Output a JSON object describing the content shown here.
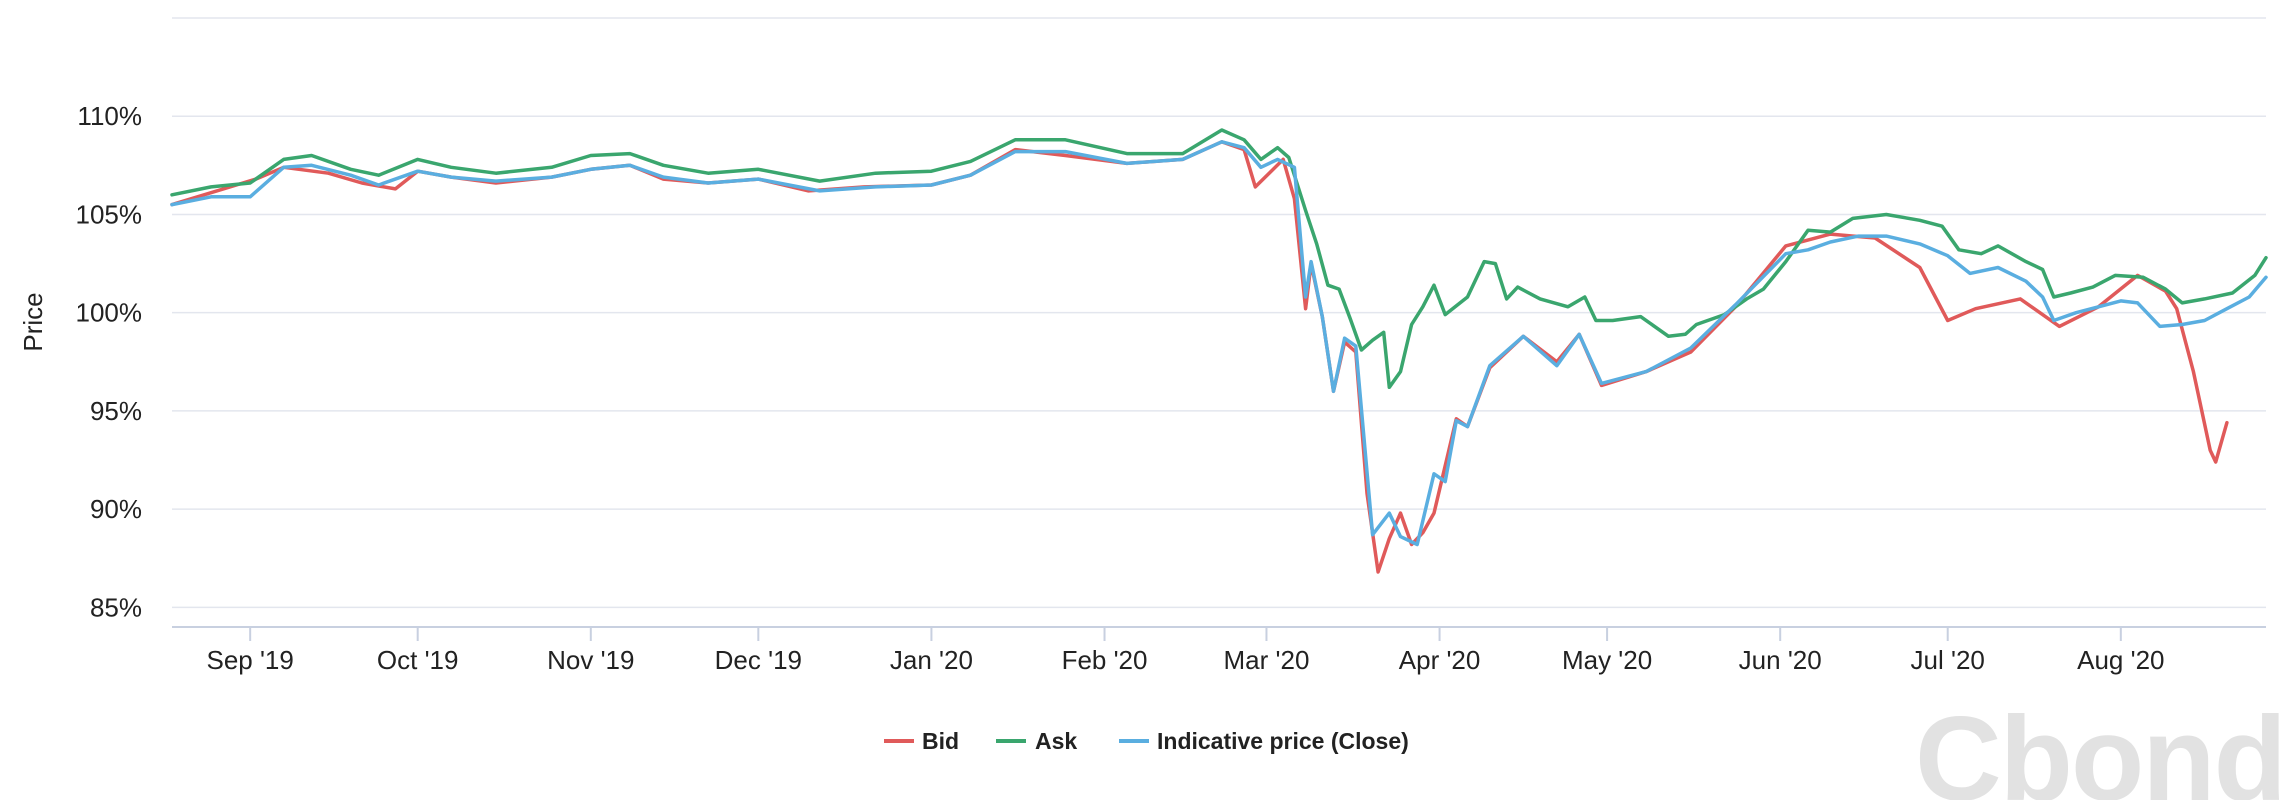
{
  "chart_data": {
    "type": "line",
    "ylabel": "Price",
    "y_unit": "%",
    "ylim": [
      84,
      115
    ],
    "y_ticks": [
      85,
      90,
      95,
      100,
      105,
      110
    ],
    "y_tick_labels": [
      "85%",
      "90%",
      "95%",
      "100%",
      "105%",
      "110%"
    ],
    "x_ticks": [
      {
        "label": "Sep '19",
        "date": "2019-09-01"
      },
      {
        "label": "Oct '19",
        "date": "2019-10-01"
      },
      {
        "label": "Nov '19",
        "date": "2019-11-01"
      },
      {
        "label": "Dec '19",
        "date": "2019-12-01"
      },
      {
        "label": "Jan '20",
        "date": "2020-01-01"
      },
      {
        "label": "Feb '20",
        "date": "2020-02-01"
      },
      {
        "label": "Mar '20",
        "date": "2020-03-01"
      },
      {
        "label": "Apr '20",
        "date": "2020-04-01"
      },
      {
        "label": "May '20",
        "date": "2020-05-01"
      },
      {
        "label": "Jun '20",
        "date": "2020-06-01"
      },
      {
        "label": "Jul '20",
        "date": "2020-07-01"
      },
      {
        "label": "Aug '20",
        "date": "2020-08-01"
      }
    ],
    "xlim": [
      "2019-08-18",
      "2020-08-27"
    ],
    "grid": true,
    "legend_position": "bottom-center",
    "series": [
      {
        "name": "Bid",
        "color": "#e05a5a",
        "points": [
          [
            "2019-08-18",
            105.5
          ],
          [
            "2019-09-02",
            106.8
          ],
          [
            "2019-09-07",
            107.4
          ],
          [
            "2019-09-15",
            107.1
          ],
          [
            "2019-09-21",
            106.6
          ],
          [
            "2019-09-27",
            106.3
          ],
          [
            "2019-10-01",
            107.2
          ],
          [
            "2019-10-07",
            106.9
          ],
          [
            "2019-10-15",
            106.6
          ],
          [
            "2019-10-25",
            106.9
          ],
          [
            "2019-11-01",
            107.3
          ],
          [
            "2019-11-08",
            107.5
          ],
          [
            "2019-11-14",
            106.8
          ],
          [
            "2019-11-22",
            106.6
          ],
          [
            "2019-12-01",
            106.8
          ],
          [
            "2019-12-10",
            106.2
          ],
          [
            "2019-12-20",
            106.4
          ],
          [
            "2020-01-01",
            106.5
          ],
          [
            "2020-01-08",
            107.0
          ],
          [
            "2020-01-16",
            108.3
          ],
          [
            "2020-01-25",
            108.0
          ],
          [
            "2020-02-05",
            107.6
          ],
          [
            "2020-02-15",
            107.8
          ],
          [
            "2020-02-22",
            108.7
          ],
          [
            "2020-02-26",
            108.3
          ],
          [
            "2020-02-28",
            106.4
          ],
          [
            "2020-03-04",
            107.8
          ],
          [
            "2020-03-06",
            105.8
          ],
          [
            "2020-03-08",
            100.2
          ],
          [
            "2020-03-09",
            102.5
          ],
          [
            "2020-03-11",
            99.8
          ],
          [
            "2020-03-13",
            96.0
          ],
          [
            "2020-03-15",
            98.5
          ],
          [
            "2020-03-17",
            98.0
          ],
          [
            "2020-03-19",
            90.8
          ],
          [
            "2020-03-21",
            86.8
          ],
          [
            "2020-03-23",
            88.5
          ],
          [
            "2020-03-25",
            89.8
          ],
          [
            "2020-03-27",
            88.2
          ],
          [
            "2020-03-29",
            88.8
          ],
          [
            "2020-03-31",
            89.8
          ],
          [
            "2020-04-04",
            94.6
          ],
          [
            "2020-04-06",
            94.2
          ],
          [
            "2020-04-10",
            97.2
          ],
          [
            "2020-04-16",
            98.8
          ],
          [
            "2020-04-22",
            97.5
          ],
          [
            "2020-04-26",
            98.9
          ],
          [
            "2020-04-30",
            96.3
          ],
          [
            "2020-05-08",
            97.0
          ],
          [
            "2020-05-16",
            98.0
          ],
          [
            "2020-05-24",
            100.3
          ],
          [
            "2020-06-02",
            103.4
          ],
          [
            "2020-06-10",
            104.0
          ],
          [
            "2020-06-18",
            103.8
          ],
          [
            "2020-06-26",
            102.3
          ],
          [
            "2020-07-01",
            99.6
          ],
          [
            "2020-07-06",
            100.2
          ],
          [
            "2020-07-14",
            100.7
          ],
          [
            "2020-07-21",
            99.3
          ],
          [
            "2020-07-28",
            100.3
          ],
          [
            "2020-08-04",
            101.9
          ],
          [
            "2020-08-09",
            101.1
          ],
          [
            "2020-08-11",
            100.2
          ],
          [
            "2020-08-14",
            97.0
          ],
          [
            "2020-08-17",
            93.0
          ],
          [
            "2020-08-18",
            92.4
          ],
          [
            "2020-08-20",
            94.4
          ]
        ]
      },
      {
        "name": "Ask",
        "color": "#3aa66e",
        "points": [
          [
            "2019-08-18",
            106.0
          ],
          [
            "2019-08-25",
            106.4
          ],
          [
            "2019-09-01",
            106.6
          ],
          [
            "2019-09-07",
            107.8
          ],
          [
            "2019-09-12",
            108.0
          ],
          [
            "2019-09-19",
            107.3
          ],
          [
            "2019-09-24",
            107.0
          ],
          [
            "2019-10-01",
            107.8
          ],
          [
            "2019-10-07",
            107.4
          ],
          [
            "2019-10-15",
            107.1
          ],
          [
            "2019-10-25",
            107.4
          ],
          [
            "2019-11-01",
            108.0
          ],
          [
            "2019-11-08",
            108.1
          ],
          [
            "2019-11-14",
            107.5
          ],
          [
            "2019-11-22",
            107.1
          ],
          [
            "2019-12-01",
            107.3
          ],
          [
            "2019-12-12",
            106.7
          ],
          [
            "2019-12-22",
            107.1
          ],
          [
            "2020-01-01",
            107.2
          ],
          [
            "2020-01-08",
            107.7
          ],
          [
            "2020-01-16",
            108.8
          ],
          [
            "2020-01-25",
            108.8
          ],
          [
            "2020-02-05",
            108.1
          ],
          [
            "2020-02-15",
            108.1
          ],
          [
            "2020-02-22",
            109.3
          ],
          [
            "2020-02-26",
            108.8
          ],
          [
            "2020-02-29",
            107.8
          ],
          [
            "2020-03-03",
            108.4
          ],
          [
            "2020-03-05",
            107.9
          ],
          [
            "2020-03-08",
            105.2
          ],
          [
            "2020-03-10",
            103.5
          ],
          [
            "2020-03-12",
            101.4
          ],
          [
            "2020-03-14",
            101.2
          ],
          [
            "2020-03-16",
            99.7
          ],
          [
            "2020-03-18",
            98.1
          ],
          [
            "2020-03-20",
            98.6
          ],
          [
            "2020-03-22",
            99.0
          ],
          [
            "2020-03-23",
            96.2
          ],
          [
            "2020-03-25",
            97.0
          ],
          [
            "2020-03-27",
            99.4
          ],
          [
            "2020-03-29",
            100.3
          ],
          [
            "2020-03-31",
            101.4
          ],
          [
            "2020-04-02",
            99.9
          ],
          [
            "2020-04-06",
            100.8
          ],
          [
            "2020-04-09",
            102.6
          ],
          [
            "2020-04-11",
            102.5
          ],
          [
            "2020-04-13",
            100.7
          ],
          [
            "2020-04-15",
            101.3
          ],
          [
            "2020-04-19",
            100.7
          ],
          [
            "2020-04-24",
            100.3
          ],
          [
            "2020-04-27",
            100.8
          ],
          [
            "2020-04-29",
            99.6
          ],
          [
            "2020-05-02",
            99.6
          ],
          [
            "2020-05-07",
            99.8
          ],
          [
            "2020-05-12",
            98.8
          ],
          [
            "2020-05-15",
            98.9
          ],
          [
            "2020-05-17",
            99.4
          ],
          [
            "2020-05-22",
            99.9
          ],
          [
            "2020-05-26",
            100.7
          ],
          [
            "2020-05-29",
            101.2
          ],
          [
            "2020-06-02",
            102.6
          ],
          [
            "2020-06-06",
            104.2
          ],
          [
            "2020-06-10",
            104.1
          ],
          [
            "2020-06-14",
            104.8
          ],
          [
            "2020-06-20",
            105.0
          ],
          [
            "2020-06-26",
            104.7
          ],
          [
            "2020-06-30",
            104.4
          ],
          [
            "2020-07-03",
            103.2
          ],
          [
            "2020-07-07",
            103.0
          ],
          [
            "2020-07-10",
            103.4
          ],
          [
            "2020-07-15",
            102.6
          ],
          [
            "2020-07-18",
            102.2
          ],
          [
            "2020-07-20",
            100.8
          ],
          [
            "2020-07-23",
            101.0
          ],
          [
            "2020-07-27",
            101.3
          ],
          [
            "2020-07-31",
            101.9
          ],
          [
            "2020-08-05",
            101.8
          ],
          [
            "2020-08-09",
            101.2
          ],
          [
            "2020-08-12",
            100.5
          ],
          [
            "2020-08-16",
            100.7
          ],
          [
            "2020-08-21",
            101.0
          ],
          [
            "2020-08-25",
            101.9
          ],
          [
            "2020-08-27",
            102.8
          ]
        ]
      },
      {
        "name": "Indicative price (Close)",
        "color": "#5aaee0",
        "points": [
          [
            "2019-08-18",
            105.5
          ],
          [
            "2019-08-25",
            105.9
          ],
          [
            "2019-09-01",
            105.9
          ],
          [
            "2019-09-07",
            107.4
          ],
          [
            "2019-09-12",
            107.5
          ],
          [
            "2019-09-19",
            107.0
          ],
          [
            "2019-09-24",
            106.5
          ],
          [
            "2019-10-01",
            107.2
          ],
          [
            "2019-10-07",
            106.9
          ],
          [
            "2019-10-15",
            106.7
          ],
          [
            "2019-10-25",
            106.9
          ],
          [
            "2019-11-01",
            107.3
          ],
          [
            "2019-11-08",
            107.5
          ],
          [
            "2019-11-14",
            106.9
          ],
          [
            "2019-11-22",
            106.6
          ],
          [
            "2019-12-01",
            106.8
          ],
          [
            "2019-12-12",
            106.2
          ],
          [
            "2019-12-22",
            106.4
          ],
          [
            "2020-01-01",
            106.5
          ],
          [
            "2020-01-08",
            107.0
          ],
          [
            "2020-01-16",
            108.2
          ],
          [
            "2020-01-25",
            108.2
          ],
          [
            "2020-02-05",
            107.6
          ],
          [
            "2020-02-15",
            107.8
          ],
          [
            "2020-02-22",
            108.7
          ],
          [
            "2020-02-26",
            108.4
          ],
          [
            "2020-02-29",
            107.4
          ],
          [
            "2020-03-03",
            107.8
          ],
          [
            "2020-03-06",
            107.4
          ],
          [
            "2020-03-08",
            100.8
          ],
          [
            "2020-03-09",
            102.6
          ],
          [
            "2020-03-11",
            99.8
          ],
          [
            "2020-03-13",
            96.0
          ],
          [
            "2020-03-15",
            98.7
          ],
          [
            "2020-03-17",
            98.3
          ],
          [
            "2020-03-20",
            88.7
          ],
          [
            "2020-03-23",
            89.8
          ],
          [
            "2020-03-25",
            88.6
          ],
          [
            "2020-03-28",
            88.2
          ],
          [
            "2020-03-31",
            91.8
          ],
          [
            "2020-04-02",
            91.4
          ],
          [
            "2020-04-04",
            94.5
          ],
          [
            "2020-04-06",
            94.2
          ],
          [
            "2020-04-10",
            97.3
          ],
          [
            "2020-04-16",
            98.8
          ],
          [
            "2020-04-22",
            97.3
          ],
          [
            "2020-04-26",
            98.9
          ],
          [
            "2020-04-30",
            96.4
          ],
          [
            "2020-05-08",
            97.0
          ],
          [
            "2020-05-16",
            98.2
          ],
          [
            "2020-05-24",
            100.4
          ],
          [
            "2020-06-02",
            103.0
          ],
          [
            "2020-06-06",
            103.2
          ],
          [
            "2020-06-10",
            103.6
          ],
          [
            "2020-06-15",
            103.9
          ],
          [
            "2020-06-20",
            103.9
          ],
          [
            "2020-06-26",
            103.5
          ],
          [
            "2020-07-01",
            102.9
          ],
          [
            "2020-07-05",
            102.0
          ],
          [
            "2020-07-10",
            102.3
          ],
          [
            "2020-07-15",
            101.6
          ],
          [
            "2020-07-18",
            100.8
          ],
          [
            "2020-07-20",
            99.6
          ],
          [
            "2020-07-24",
            100.0
          ],
          [
            "2020-07-28",
            100.3
          ],
          [
            "2020-08-01",
            100.6
          ],
          [
            "2020-08-04",
            100.5
          ],
          [
            "2020-08-08",
            99.3
          ],
          [
            "2020-08-12",
            99.4
          ],
          [
            "2020-08-16",
            99.6
          ],
          [
            "2020-08-20",
            100.2
          ],
          [
            "2020-08-24",
            100.8
          ],
          [
            "2020-08-27",
            101.8
          ]
        ]
      }
    ]
  },
  "legend": [
    {
      "label": "Bid",
      "color": "#e05a5a"
    },
    {
      "label": "Ask",
      "color": "#3aa66e"
    },
    {
      "label": "Indicative price (Close)",
      "color": "#5aaee0"
    }
  ],
  "watermark": "Cbonds"
}
